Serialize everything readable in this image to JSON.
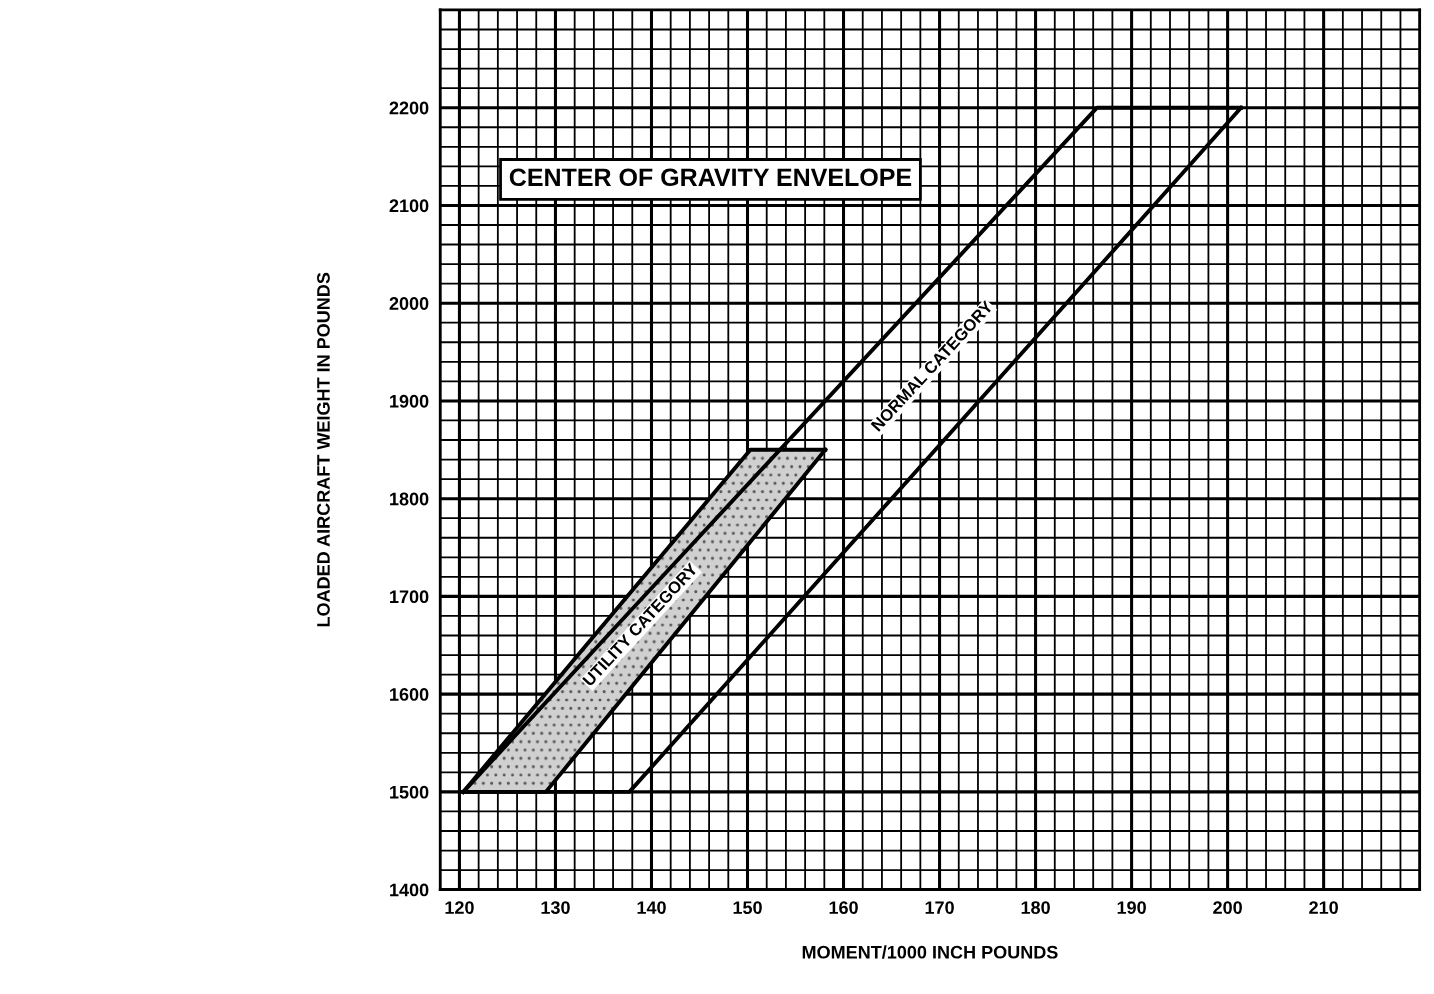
{
  "chart_data": {
    "type": "line",
    "title": "CENTER OF GRAVITY ENVELOPE",
    "xlabel": "MOMENT/1000 INCH POUNDS",
    "ylabel": "LOADED AIRCRAFT WEIGHT IN POUNDS",
    "series": [
      {
        "color": "#000000",
        "x": [
          120.4,
          137.7,
          186.4,
          201.4
        ],
        "values": [
          1500,
          1684,
          2200,
          2200
        ]
      },
      {
        "color": "#000000",
        "x": [
          120.4,
          137.7,
          186.4,
          201.4
        ],
        "values": [
          1500,
          1500,
          2035,
          2200
        ]
      },
      {
        "color": "#000000",
        "x": [
          120.4,
          129,
          150.3,
          158.1
        ],
        "values": [
          1500,
          1601,
          1850,
          1850
        ]
      },
      {
        "color": "#000000",
        "x": [
          120.4,
          129,
          150.3,
          158.1
        ],
        "values": [
          1500,
          1500,
          1756,
          1850
        ]
      }
    ],
    "annotations": [
      "UTILITY CATEGORY",
      "NORMAL CATEGORY"
    ],
    "xlim": [
      118,
      220
    ],
    "ylim": [
      1400,
      2300
    ],
    "xticks": [
      120,
      130,
      140,
      150,
      160,
      170,
      180,
      190,
      200,
      210
    ],
    "yticks": [
      1400,
      1500,
      1600,
      1700,
      1800,
      1900,
      2000,
      2100,
      2200
    ],
    "grid": true,
    "legend": false
  }
}
